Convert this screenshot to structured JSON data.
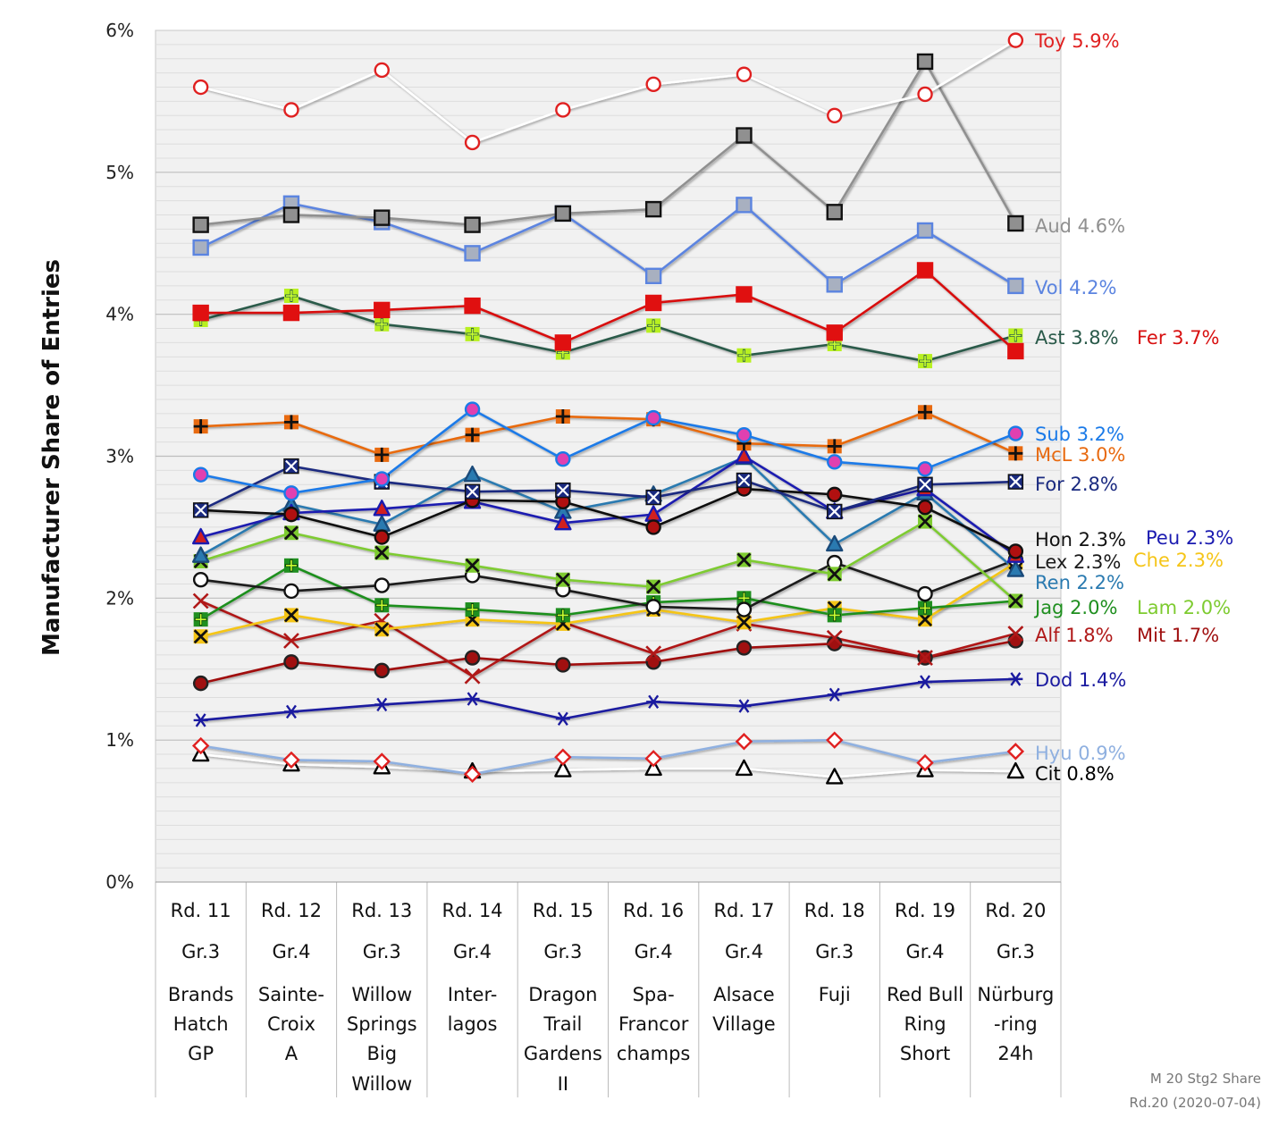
{
  "chart_data": {
    "type": "line",
    "ylabel": "Manufacturer Share of Entries",
    "ylim": [
      0,
      6
    ],
    "yticks": [
      "0%",
      "1%",
      "2%",
      "3%",
      "4%",
      "5%",
      "6%"
    ],
    "grid": true,
    "categories": [
      [
        "Rd. 11",
        "Gr.3",
        "Brands",
        "Hatch",
        "GP"
      ],
      [
        "Rd. 12",
        "Gr.4",
        "Sainte-",
        "Croix",
        "A"
      ],
      [
        "Rd. 13",
        "Gr.3",
        "Willow",
        "Springs",
        "Big",
        "Willow"
      ],
      [
        "Rd. 14",
        "Gr.4",
        "Inter-",
        "lagos"
      ],
      [
        "Rd. 15",
        "Gr.3",
        "Dragon",
        "Trail",
        "Gardens",
        "II"
      ],
      [
        "Rd. 16",
        "Gr.4",
        "Spa-",
        "Francor",
        "champs"
      ],
      [
        "Rd. 17",
        "Gr.4",
        "Alsace",
        "Village"
      ],
      [
        "Rd. 18",
        "Gr.3",
        "Fuji"
      ],
      [
        "Rd. 19",
        "Gr.4",
        "Red Bull",
        "Ring",
        "Short"
      ],
      [
        "Rd. 20",
        "Gr.3",
        "Nürburg",
        "-ring",
        "24h"
      ]
    ],
    "series": [
      {
        "name": "Cit",
        "label": "Cit 0.8%",
        "color": "#ffffff",
        "textColor": "#000000",
        "marker": "triangle",
        "fill": "#ffffff",
        "stroke": "#000000",
        "values": [
          0.9,
          0.83,
          0.81,
          0.78,
          0.79,
          0.8,
          0.8,
          0.74,
          0.79,
          0.78
        ]
      },
      {
        "name": "Hyu",
        "label": "Hyu 0.9%",
        "color": "#8fb0e0",
        "textColor": "#8fb0e0",
        "marker": "diamond",
        "fill": "#ffffff",
        "stroke": "#e02020",
        "values": [
          0.96,
          0.86,
          0.85,
          0.76,
          0.88,
          0.87,
          0.99,
          1.0,
          0.84,
          0.92
        ]
      },
      {
        "name": "Dod",
        "label": "Dod 1.4%",
        "color": "#1a1aa0",
        "textColor": "#1a1aa0",
        "marker": "asterisk",
        "fill": "#ffffff",
        "stroke": "#1a1aa0",
        "values": [
          1.14,
          1.2,
          1.25,
          1.29,
          1.15,
          1.27,
          1.24,
          1.32,
          1.41,
          1.43
        ]
      },
      {
        "name": "Mit",
        "label": "Mit 1.7%",
        "color": "#a01010",
        "textColor": "#a01010",
        "marker": "circle",
        "fill": "#a01010",
        "stroke": "#222222",
        "values": [
          1.4,
          1.55,
          1.49,
          1.58,
          1.53,
          1.55,
          1.65,
          1.68,
          1.58,
          1.7
        ]
      },
      {
        "name": "Alf",
        "label": "Alf 1.8%",
        "color": "#b01818",
        "textColor": "#b01818",
        "marker": "x",
        "fill": "#ffffff",
        "stroke": "#b01818",
        "values": [
          1.98,
          1.7,
          1.84,
          1.45,
          1.83,
          1.61,
          1.82,
          1.72,
          1.58,
          1.75
        ]
      },
      {
        "name": "Che",
        "label": "Che 2.3%",
        "color": "#f5c518",
        "textColor": "#f5c518",
        "marker": "xcross",
        "fill": "#f5c518",
        "stroke": "#111111",
        "values": [
          1.73,
          1.88,
          1.78,
          1.85,
          1.82,
          1.92,
          1.83,
          1.93,
          1.85,
          2.25
        ]
      },
      {
        "name": "Jag",
        "label": "Jag 2.0%",
        "color": "#1f8f1f",
        "textColor": "#1f8f1f",
        "marker": "plus",
        "fill": "#1f8f1f",
        "stroke": "#0a3a0a",
        "values": [
          1.85,
          2.23,
          1.95,
          1.92,
          1.88,
          1.97,
          2.0,
          1.88,
          1.93,
          1.98
        ]
      },
      {
        "name": "Lex",
        "label": "Lex 2.3%",
        "color": "#1a1a1a",
        "textColor": "#1a1a1a",
        "marker": "circle",
        "fill": "#ffffff",
        "stroke": "#111111",
        "values": [
          2.13,
          2.05,
          2.09,
          2.16,
          2.06,
          1.94,
          1.92,
          2.25,
          2.03,
          2.27
        ]
      },
      {
        "name": "Lam",
        "label": "Lam 2.0%",
        "color": "#7ecb30",
        "textColor": "#7ecb30",
        "marker": "xcross",
        "fill": "#7ecb30",
        "stroke": "#111111",
        "values": [
          2.26,
          2.46,
          2.32,
          2.23,
          2.13,
          2.08,
          2.27,
          2.17,
          2.54,
          1.98
        ]
      },
      {
        "name": "Ren",
        "label": "Ren 2.2%",
        "color": "#2a7ab0",
        "textColor": "#2a7ab0",
        "marker": "triangle",
        "fill": "#2a7ab0",
        "stroke": "#1a4a7a",
        "values": [
          2.3,
          2.66,
          2.52,
          2.87,
          2.61,
          2.73,
          2.99,
          2.38,
          2.74,
          2.2
        ]
      },
      {
        "name": "Peu",
        "label": "Peu 2.3%",
        "color": "#1a1ab0",
        "textColor": "#1a1ab0",
        "marker": "triangle",
        "fill": "#d02020",
        "stroke": "#1a1ab0",
        "values": [
          2.43,
          2.6,
          2.63,
          2.68,
          2.53,
          2.59,
          3.0,
          2.61,
          2.77,
          2.3
        ]
      },
      {
        "name": "Hon",
        "label": "Hon 2.3%",
        "color": "#111111",
        "textColor": "#111111",
        "marker": "circle",
        "fill": "#b01010",
        "stroke": "#111111",
        "values": [
          2.62,
          2.59,
          2.43,
          2.69,
          2.68,
          2.5,
          2.77,
          2.73,
          2.64,
          2.33
        ]
      },
      {
        "name": "For",
        "label": "For 2.8%",
        "color": "#1a2a80",
        "textColor": "#1a2a80",
        "marker": "xsquare",
        "fill": "#1a2a80",
        "stroke": "#111111",
        "values": [
          2.62,
          2.93,
          2.82,
          2.75,
          2.76,
          2.71,
          2.83,
          2.61,
          2.8,
          2.82
        ]
      },
      {
        "name": "McL",
        "label": "McL 3.0%",
        "color": "#e86a10",
        "textColor": "#e86a10",
        "marker": "plussquare",
        "fill": "#e86a10",
        "stroke": "#111111",
        "values": [
          3.21,
          3.24,
          3.01,
          3.15,
          3.28,
          3.26,
          3.09,
          3.07,
          3.31,
          3.02
        ]
      },
      {
        "name": "Sub",
        "label": "Sub 3.2%",
        "color": "#1a7ae8",
        "textColor": "#1a7ae8",
        "marker": "circle",
        "fill": "#e040b0",
        "stroke": "#1a7ae8",
        "values": [
          2.87,
          2.74,
          2.84,
          3.33,
          2.98,
          3.27,
          3.15,
          2.96,
          2.91,
          3.16
        ]
      },
      {
        "name": "Ast",
        "label": "Ast 3.8%",
        "color": "#2a5a4a",
        "textColor": "#2a5a4a",
        "marker": "plus",
        "fill": "#b8f020",
        "stroke": "#2a5a4a",
        "values": [
          3.96,
          4.13,
          3.93,
          3.86,
          3.73,
          3.92,
          3.71,
          3.79,
          3.67,
          3.85
        ]
      },
      {
        "name": "Fer",
        "label": "Fer 3.7%",
        "color": "#d81010",
        "textColor": "#d81010",
        "marker": "square",
        "fill": "#e01010",
        "stroke": "#e01010",
        "values": [
          4.01,
          4.01,
          4.03,
          4.06,
          3.8,
          4.08,
          4.14,
          3.87,
          4.31,
          3.74
        ]
      },
      {
        "name": "Vol",
        "label": "Vol 4.2%",
        "color": "#5b84e0",
        "textColor": "#5b84e0",
        "marker": "square",
        "fill": "#a8b0c0",
        "stroke": "#5b84e0",
        "values": [
          4.47,
          4.78,
          4.65,
          4.43,
          4.71,
          4.27,
          4.77,
          4.21,
          4.59,
          4.2
        ]
      },
      {
        "name": "Aud",
        "label": "Aud 4.6%",
        "color": "#909090",
        "textColor": "#909090",
        "marker": "square",
        "fill": "#909090",
        "stroke": "#111111",
        "values": [
          4.63,
          4.7,
          4.68,
          4.63,
          4.71,
          4.74,
          5.26,
          4.72,
          5.78,
          4.64
        ]
      },
      {
        "name": "Toy",
        "label": "Toy 5.9%",
        "color": "#ffffff",
        "textColor": "#e02020",
        "marker": "circle",
        "fill": "#ffffff",
        "stroke": "#e02020",
        "values": [
          5.6,
          5.44,
          5.72,
          5.21,
          5.44,
          5.62,
          5.69,
          5.4,
          5.55,
          5.93
        ]
      }
    ],
    "footnote": [
      "M 20 Stg2 Share",
      "Rd.20 (2020-07-04)"
    ]
  }
}
